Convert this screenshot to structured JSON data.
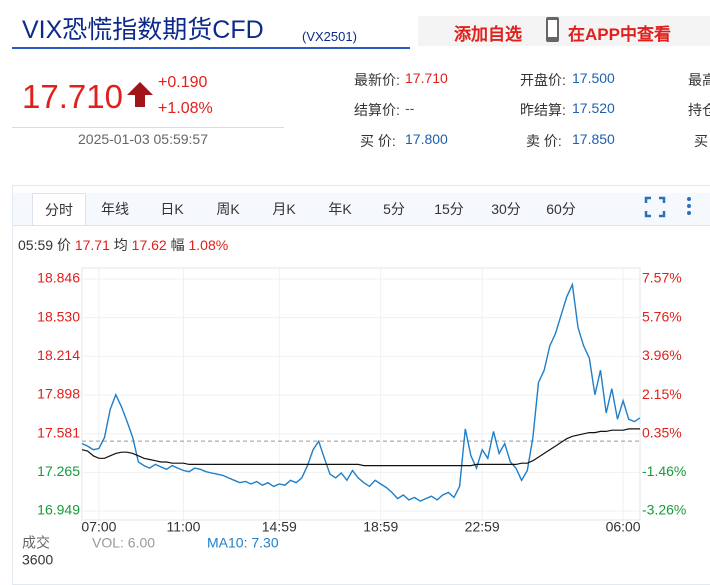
{
  "header": {
    "title": "VIX恐慌指数期货CFD",
    "code": "(VX2501)",
    "actions": [
      "添加自选",
      "在APP中查看"
    ]
  },
  "quote": {
    "price": "17.710",
    "change": "+0.190",
    "change_pct": "+1.08%",
    "time": "2025-01-03 05:59:57"
  },
  "fields": [
    {
      "label": "最新价:",
      "value": "17.710",
      "color": "#e0201c"
    },
    {
      "label": "开盘价:",
      "value": "17.500",
      "color": "#1f5fb0"
    },
    {
      "label": "最高",
      "value": null,
      "color": "#1f5fb0"
    },
    {
      "label": "结算价:",
      "value": "--",
      "color": "#1f5fb0"
    },
    {
      "label": "昨结算:",
      "value": "17.520",
      "color": "#1f5fb0"
    },
    {
      "label": "持仓",
      "value": null,
      "color": "#1f5fb0"
    },
    {
      "label": "买  价:",
      "value": "17.800",
      "color": "#1f5fb0"
    },
    {
      "label": "卖  价:",
      "value": "17.850",
      "color": "#1f5fb0"
    },
    {
      "label": "买",
      "value": null,
      "color": "#1f5fb0"
    }
  ],
  "tabs": [
    "分时",
    "年线",
    "日K",
    "周K",
    "月K",
    "年K",
    "5分",
    "15分",
    "30分",
    "60分"
  ],
  "active_tab": 0,
  "info": {
    "time": "05:59",
    "price_label": "价",
    "price": "17.71",
    "avg_label": "均",
    "avg": "17.62",
    "pct_label": "幅",
    "pct": "1.08%"
  },
  "volume": {
    "label": "成交",
    "vol": "VOL: 6.00",
    "ma10": "MA10: 7.30",
    "max": "3600"
  },
  "chart_data": {
    "type": "line",
    "categories": [
      null,
      null,
      null,
      "07:00",
      null,
      null,
      null,
      null,
      null,
      null,
      null,
      null,
      null,
      null,
      null,
      null,
      null,
      null,
      "11:00",
      null,
      null,
      null,
      null,
      null,
      null,
      null,
      null,
      null,
      null,
      null,
      null,
      null,
      null,
      null,
      null,
      "14:59",
      null,
      null,
      null,
      null,
      null,
      null,
      null,
      null,
      null,
      null,
      null,
      null,
      null,
      null,
      null,
      null,
      null,
      "18:59",
      null,
      null,
      null,
      null,
      null,
      null,
      null,
      null,
      null,
      null,
      null,
      null,
      null,
      null,
      null,
      null,
      null,
      "22:59",
      null,
      null,
      null,
      null,
      null,
      null,
      null,
      null,
      null,
      null,
      null,
      null,
      null,
      null,
      null,
      null,
      null,
      null,
      null,
      null,
      null,
      null,
      null,
      null,
      "06:00",
      null,
      null,
      null
    ],
    "series": [
      {
        "name": "价",
        "color": "#1f7fc8",
        "values": [
          17.5,
          17.48,
          17.45,
          17.46,
          17.55,
          17.78,
          17.9,
          17.8,
          17.68,
          17.55,
          17.35,
          17.32,
          17.3,
          17.33,
          17.31,
          17.29,
          17.32,
          17.3,
          17.28,
          17.27,
          17.3,
          17.29,
          17.27,
          17.26,
          17.25,
          17.24,
          17.22,
          17.2,
          17.18,
          17.19,
          17.17,
          17.19,
          17.16,
          17.18,
          17.15,
          17.17,
          17.16,
          17.2,
          17.18,
          17.22,
          17.32,
          17.45,
          17.52,
          17.38,
          17.25,
          17.22,
          17.26,
          17.2,
          17.28,
          17.22,
          17.18,
          17.15,
          17.2,
          17.17,
          17.14,
          17.1,
          17.05,
          17.08,
          17.04,
          17.06,
          17.03,
          17.05,
          17.07,
          17.04,
          17.08,
          17.1,
          17.06,
          17.15,
          17.62,
          17.4,
          17.3,
          17.45,
          17.38,
          17.6,
          17.42,
          17.5,
          17.35,
          17.3,
          17.2,
          17.28,
          17.55,
          18.0,
          18.1,
          18.3,
          18.4,
          18.55,
          18.7,
          18.8,
          18.45,
          18.3,
          18.2,
          17.9,
          18.1,
          17.75,
          17.95,
          17.7,
          17.85,
          17.7,
          17.68,
          17.71
        ]
      },
      {
        "name": "均",
        "color": "#111111",
        "values": [
          17.45,
          17.44,
          17.4,
          17.38,
          17.38,
          17.4,
          17.42,
          17.43,
          17.43,
          17.42,
          17.4,
          17.38,
          17.37,
          17.36,
          17.35,
          17.35,
          17.34,
          17.34,
          17.34,
          17.33,
          17.33,
          17.33,
          17.33,
          17.33,
          17.33,
          17.33,
          17.33,
          17.33,
          17.33,
          17.33,
          17.33,
          17.33,
          17.33,
          17.33,
          17.33,
          17.33,
          17.33,
          17.33,
          17.33,
          17.33,
          17.33,
          17.33,
          17.33,
          17.33,
          17.33,
          17.33,
          17.33,
          17.33,
          17.33,
          17.33,
          17.32,
          17.32,
          17.32,
          17.32,
          17.32,
          17.32,
          17.32,
          17.32,
          17.32,
          17.32,
          17.32,
          17.32,
          17.32,
          17.32,
          17.32,
          17.32,
          17.32,
          17.32,
          17.32,
          17.32,
          17.33,
          17.33,
          17.33,
          17.33,
          17.33,
          17.33,
          17.33,
          17.33,
          17.34,
          17.34,
          17.36,
          17.39,
          17.42,
          17.45,
          17.48,
          17.51,
          17.54,
          17.56,
          17.57,
          17.58,
          17.59,
          17.59,
          17.6,
          17.6,
          17.61,
          17.61,
          17.61,
          17.62,
          17.62,
          17.62
        ]
      }
    ],
    "ylim": [
      16.949,
      18.846
    ],
    "yticks": [
      18.846,
      {
        "value": 18.53,
        "label": "18.530"
      },
      18.214,
      17.898,
      17.581,
      17.265,
      16.949
    ],
    "y2lim": [
      -3.26,
      7.57
    ],
    "y2ticks": [
      {
        "value": 7.57,
        "label": "7.57%"
      },
      {
        "value": 5.76,
        "label": "5.76%"
      },
      {
        "value": 3.96,
        "label": "3.96%"
      },
      {
        "value": 2.15,
        "label": "2.15%"
      },
      {
        "value": 0.35,
        "label": "0.35%"
      },
      {
        "value": -1.46,
        "label": "-1.46%"
      },
      {
        "value": -3.26,
        "label": "-3.26%"
      }
    ],
    "reference": 17.52,
    "grid": true,
    "up_color": "#e0201c",
    "down_color": "#1a9a3a"
  }
}
